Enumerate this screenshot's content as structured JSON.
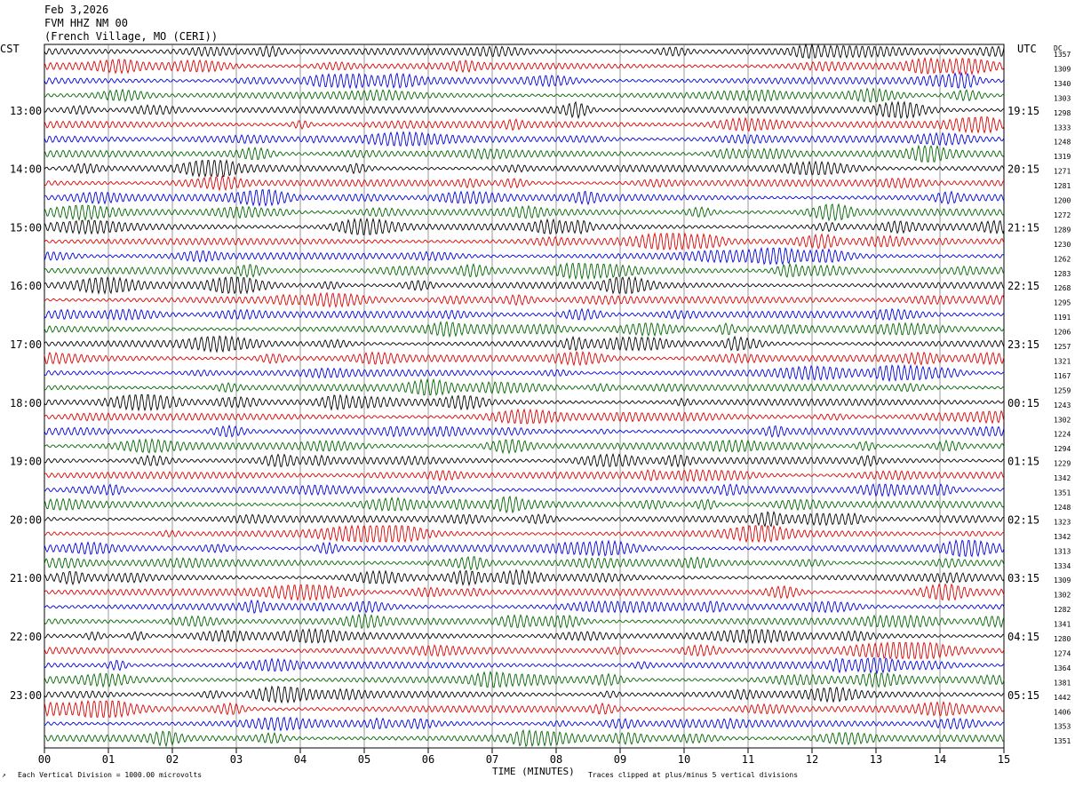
{
  "header": {
    "date": "Feb 3,2026",
    "station": "FVM HHZ NM 00",
    "location": "(French Village, MO (CERI))"
  },
  "left_tz": "CST",
  "right_tz": "UTC",
  "dc_label": "DC",
  "footer": {
    "scale_note": "Each Vertical Division = 1000.00 microvolts",
    "xlabel": "TIME (MINUTES)",
    "clip_note": "Traces clipped at plus/minus 5 vertical divisions"
  },
  "chart_data": {
    "type": "line",
    "xlabel": "TIME (MINUTES)",
    "xlim": [
      0,
      15
    ],
    "x_ticks": [
      "00",
      "01",
      "02",
      "03",
      "04",
      "05",
      "06",
      "07",
      "08",
      "09",
      "10",
      "11",
      "12",
      "13",
      "14",
      "15"
    ],
    "trace_colors": [
      "#000000",
      "#dd0000",
      "#0000dd",
      "#006600"
    ],
    "left_hour_labels": [
      "13:00",
      "14:00",
      "15:00",
      "16:00",
      "17:00",
      "18:00",
      "19:00",
      "20:00",
      "21:00",
      "22:00",
      "23:00"
    ],
    "right_hour_labels": [
      "19:15",
      "20:15",
      "21:15",
      "22:15",
      "23:15",
      "00:15",
      "01:15",
      "02:15",
      "03:15",
      "04:15",
      "05:15"
    ],
    "dc_offsets": [
      "1357",
      "1309",
      "1340",
      "1303",
      "1298",
      "1333",
      "1248",
      "1319",
      "1271",
      "1281",
      "1200",
      "1272",
      "1289",
      "1230",
      "1262",
      "1283",
      "1268",
      "1295",
      "1191",
      "1206",
      "1257",
      "1321",
      "1167",
      "1259",
      "1243",
      "1302",
      "1224",
      "1294",
      "1229",
      "1342",
      "1351",
      "1248",
      "1323",
      "1342",
      "1313",
      "1334",
      "1309",
      "1302",
      "1282",
      "1341",
      "1280",
      "1274",
      "1364",
      "1381",
      "1442",
      "1406",
      "1353",
      "1351"
    ],
    "trace_count": 48
  }
}
